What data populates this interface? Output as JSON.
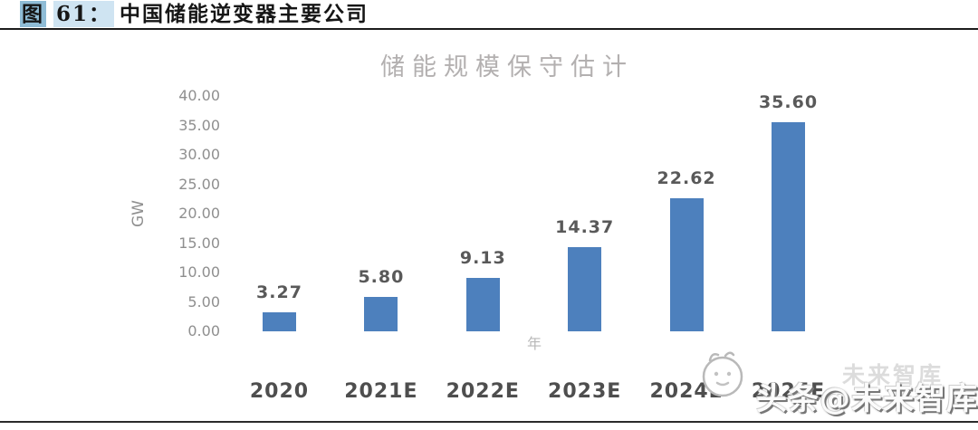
{
  "header": {
    "figure_char": "图",
    "figure_number": "61：",
    "title": "中国储能逆变器主要公司"
  },
  "chart_data": {
    "type": "bar",
    "title": "储能规模保守估计",
    "categories": [
      "2020",
      "2021E",
      "2022E",
      "2023E",
      "2024E",
      "2025E"
    ],
    "values": [
      3.27,
      5.8,
      9.13,
      14.37,
      22.62,
      35.6
    ],
    "value_labels": [
      "3.27",
      "5.80",
      "9.13",
      "14.37",
      "22.62",
      "35.60"
    ],
    "xlabel": "年",
    "ylabel": "GW",
    "ylim": [
      0,
      40
    ],
    "y_ticks": [
      "0.00",
      "5.00",
      "10.00",
      "15.00",
      "20.00",
      "25.00",
      "30.00",
      "35.00",
      "40.00"
    ],
    "grid": false,
    "legend": "none",
    "bar_color": "#4d80bd",
    "value_label_color": "#595959"
  },
  "watermark": {
    "ghost_text": "未来智库",
    "main_text": "头条@未来智库",
    "logo_icon": "toutiao-mascot-icon"
  },
  "colors": {
    "figure_char_highlight": "#8fbcd6",
    "figure_number_highlight": "#cfe4f2",
    "bar": "#4d80bd",
    "header_rule": "#1c1c1c",
    "bottom_rule": "#2b2b2b"
  }
}
